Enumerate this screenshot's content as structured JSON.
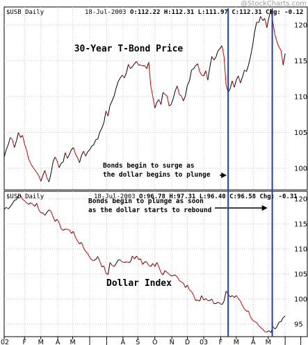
{
  "watermark": "@StockCharts.com",
  "chart_data": [
    {
      "type": "line",
      "symbol_label": "$USB Daily",
      "header": {
        "date": "18-Jul-2003",
        "open": "O:112.22",
        "high": "H:112.31",
        "low": "L:111.97",
        "close": "C:112.31",
        "change": "Chg: -0.12"
      },
      "title": "30-Year T-Bond Price",
      "annotation": [
        "Bonds begin to surge as",
        "the dollar begins to plunge"
      ],
      "ylim": [
        97,
        122.5
      ],
      "yticks": [
        100,
        105,
        110,
        115,
        120
      ],
      "x": [
        0,
        3,
        6,
        9,
        12,
        15,
        18,
        21,
        24,
        27,
        30,
        33,
        36,
        39,
        42,
        45,
        48,
        51,
        54,
        57,
        60,
        63,
        66,
        69,
        72,
        75,
        78,
        81,
        84,
        87,
        90,
        93,
        96,
        99,
        102,
        105,
        108,
        111,
        114,
        117,
        120,
        123,
        126,
        129,
        132,
        135,
        138,
        141,
        144,
        147,
        150,
        153,
        156,
        159,
        162,
        165,
        168,
        171,
        174,
        177,
        180,
        183,
        186,
        189,
        192,
        195,
        198,
        201,
        204,
        207,
        210,
        213,
        216,
        219,
        222,
        225,
        228,
        231,
        234,
        237,
        240,
        243,
        246,
        249,
        252,
        255,
        258,
        261,
        264,
        267,
        270,
        273,
        276,
        279,
        282,
        285,
        288,
        291,
        294,
        297,
        300,
        303,
        306,
        309,
        312,
        315,
        318,
        321,
        324,
        327,
        330,
        333,
        336,
        339,
        342,
        345,
        348,
        351,
        354,
        357,
        360,
        363,
        366,
        369,
        372,
        375,
        378,
        381,
        384,
        387,
        390,
        393,
        396,
        399,
        402,
        405,
        408,
        411,
        414
      ],
      "values": [
        101.6,
        102.6,
        103.3,
        104.3,
        104.0,
        102.9,
        103.8,
        105.0,
        104.3,
        104.6,
        103.4,
        102.5,
        101.3,
        100.7,
        100.2,
        99.8,
        99.4,
        99.0,
        98.2,
        99.0,
        99.7,
        98.7,
        98.1,
        99.3,
        100.9,
        101.6,
        101.0,
        100.1,
        100.7,
        100.9,
        102.2,
        101.4,
        101.9,
        102.6,
        102.9,
        102.0,
        101.5,
        100.8,
        101.8,
        102.4,
        101.7,
        102.3,
        102.6,
        103.1,
        103.3,
        104.0,
        104.1,
        105.1,
        105.6,
        106.4,
        108.0,
        107.3,
        108.8,
        109.4,
        110.1,
        111.2,
        112.1,
        112.6,
        113.0,
        112.6,
        113.3,
        114.5,
        113.9,
        114.2,
        114.6,
        114.9,
        114.4,
        114.4,
        114.3,
        114.3,
        113.9,
        114.8,
        111.5,
        110.0,
        108.4,
        109.2,
        109.6,
        108.9,
        110.6,
        110.3,
        110.1,
        108.7,
        108.9,
        109.7,
        110.8,
        111.5,
        110.3,
        110.1,
        109.4,
        110.1,
        111.6,
        112.2,
        113.7,
        113.9,
        114.3,
        114.6,
        113.5,
        113.0,
        112.9,
        113.6,
        112.3,
        114.1,
        115.6,
        115.1,
        115.5,
        116.4,
        116.7,
        117.1,
        115.5,
        111.6,
        110.6,
        111.1,
        112.2,
        111.3,
        112.3,
        112.9,
        111.9,
        112.7,
        113.7,
        113.5,
        114.4,
        115.6,
        117.1,
        119.0,
        120.4,
        120.3,
        121.2,
        120.6,
        120.9,
        119.6,
        121.0,
        122.1,
        120.3,
        118.6,
        117.6,
        116.9,
        116.4,
        114.4,
        116.0
      ]
    },
    {
      "type": "line",
      "symbol_label": "$USD Daily",
      "header": {
        "date": "18-Jul-2003",
        "open": "O:96.78",
        "high": "H:97.31",
        "low": "L:96.40",
        "close": "C:96.58",
        "change": "Chg: -0.31"
      },
      "title": "Dollar Index",
      "annotation": [
        "Bonds begin to plunge as soon",
        "as the dollar starts to rebound"
      ],
      "ylim": [
        92.5,
        121.5
      ],
      "yticks": [
        95,
        100,
        105,
        110,
        115,
        120
      ],
      "x": [
        0,
        3,
        6,
        9,
        12,
        15,
        18,
        21,
        24,
        27,
        30,
        33,
        36,
        39,
        42,
        45,
        48,
        51,
        54,
        57,
        60,
        63,
        66,
        69,
        72,
        75,
        78,
        81,
        84,
        87,
        90,
        93,
        96,
        99,
        102,
        105,
        108,
        111,
        114,
        117,
        120,
        123,
        126,
        129,
        132,
        135,
        138,
        141,
        144,
        147,
        150,
        153,
        156,
        159,
        162,
        165,
        168,
        171,
        174,
        177,
        180,
        183,
        186,
        189,
        192,
        195,
        198,
        201,
        204,
        207,
        210,
        213,
        216,
        219,
        222,
        225,
        228,
        231,
        234,
        237,
        240,
        243,
        246,
        249,
        252,
        255,
        258,
        261,
        264,
        267,
        270,
        273,
        276,
        279,
        282,
        285,
        288,
        291,
        294,
        297,
        300,
        303,
        306,
        309,
        312,
        315,
        318,
        321,
        324,
        327,
        330,
        333,
        336,
        339,
        342,
        345,
        348,
        351,
        354,
        357,
        360,
        363,
        366,
        369,
        372,
        375,
        378,
        381,
        384,
        387,
        390,
        393,
        396,
        399,
        402,
        405,
        408,
        411,
        414
      ],
      "values": [
        117.9,
        118.3,
        118.0,
        118.4,
        119.0,
        119.7,
        119.8,
        120.6,
        120.7,
        119.9,
        119.6,
        119.2,
        118.9,
        119.2,
        118.9,
        118.5,
        119.1,
        117.8,
        117.2,
        117.2,
        116.7,
        117.3,
        117.8,
        117.5,
        116.4,
        115.5,
        115.9,
        115.2,
        114.0,
        113.7,
        114.0,
        113.9,
        113.8,
        113.1,
        113.5,
        112.3,
        111.6,
        111.0,
        111.3,
        110.2,
        109.5,
        109.1,
        108.3,
        107.8,
        107.7,
        107.9,
        108.5,
        107.5,
        106.4,
        106.6,
        105.1,
        104.9,
        107.3,
        106.7,
        106.5,
        107.1,
        107.8,
        107.8,
        107.4,
        107.3,
        107.4,
        107.3,
        107.4,
        108.6,
        108.0,
        108.6,
        107.9,
        108.0,
        106.9,
        107.4,
        107.4,
        106.7,
        106.5,
        107.1,
        106.5,
        107.3,
        106.4,
        105.3,
        104.8,
        105.7,
        105.3,
        105.0,
        104.6,
        104.7,
        104.8,
        104.4,
        103.7,
        103.4,
        103.2,
        102.3,
        102.8,
        101.8,
        101.5,
        100.8,
        99.7,
        99.8,
        99.6,
        100.7,
        99.8,
        100.1,
        99.7,
        99.7,
        100.0,
        99.1,
        99.1,
        99.4,
        99.1,
        98.9,
        99.6,
        101.6,
        101.0,
        100.4,
        100.7,
        100.3,
        100.7,
        100.1,
        99.6,
        98.7,
        98.0,
        97.6,
        97.6,
        96.4,
        95.8,
        95.5,
        95.3,
        94.7,
        94.3,
        94.0,
        93.5,
        93.4,
        93.7,
        93.3,
        94.5,
        94.0,
        94.5,
        95.4,
        95.5,
        96.3,
        96.6
      ]
    }
  ],
  "xaxis": {
    "domain": [
      0,
      420
    ],
    "labels": [
      {
        "text": "02",
        "x": 0
      },
      {
        "text": "F",
        "x": 30
      },
      {
        "text": "M",
        "x": 54
      },
      {
        "text": "A",
        "x": 79
      },
      {
        "text": "M",
        "x": 101
      },
      {
        "text": "J",
        "x": 126
      },
      {
        "text": "J",
        "x": 151
      },
      {
        "text": "A",
        "x": 175
      },
      {
        "text": "S",
        "x": 197
      },
      {
        "text": "O",
        "x": 222
      },
      {
        "text": "N",
        "x": 247
      },
      {
        "text": "D",
        "x": 270
      },
      {
        "text": "03",
        "x": 294
      },
      {
        "text": "F",
        "x": 319
      },
      {
        "text": "M",
        "x": 342
      },
      {
        "text": "A",
        "x": 367
      },
      {
        "text": "M",
        "x": 389
      },
      {
        "text": "J",
        "x": 414
      },
      {
        "text": "J",
        "x": 437
      }
    ]
  },
  "markers": [
    330,
    395
  ],
  "colors": {
    "price_line_up": "#000000",
    "price_line_down": "#cc0000",
    "grid": "#c8c8c8",
    "marker": "#1a3fbf",
    "arrow": "#000000",
    "watermark": "#9a9a9a"
  }
}
